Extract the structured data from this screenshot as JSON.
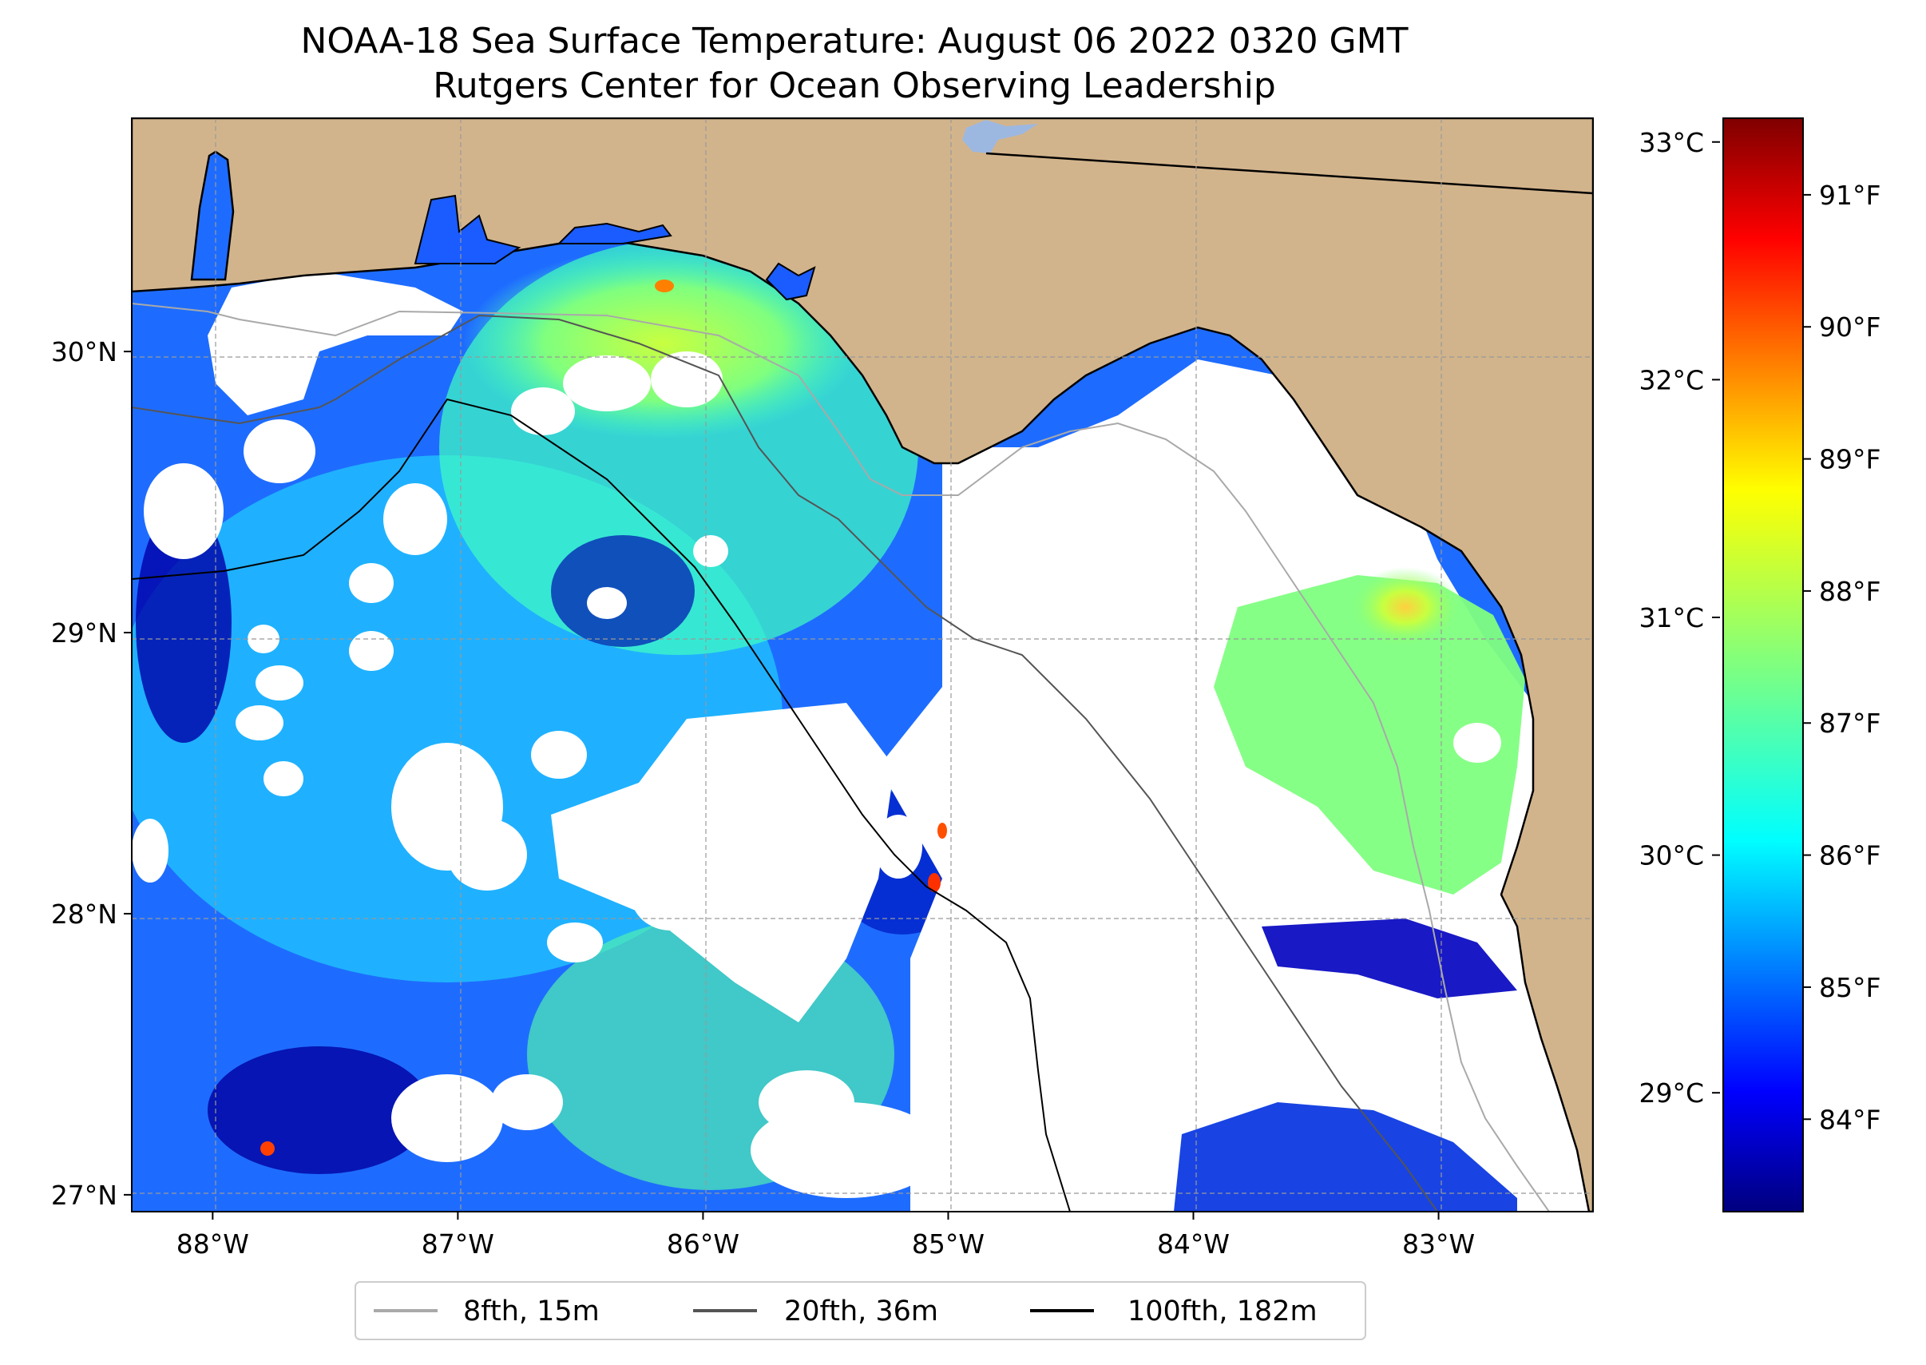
{
  "title": {
    "line1": "NOAA-18 Sea Surface Temperature: August 06 2022 0320 GMT",
    "line2": "Rutgers Center for Ocean Observing Leadership"
  },
  "map": {
    "lon_range": [
      -88.33,
      -82.37
    ],
    "lat_range": [
      26.94,
      30.83
    ],
    "lon_ticks": [
      {
        "value": -88,
        "label": "88°W"
      },
      {
        "value": -87,
        "label": "87°W"
      },
      {
        "value": -86,
        "label": "86°W"
      },
      {
        "value": -85,
        "label": "85°W"
      },
      {
        "value": -84,
        "label": "84°W"
      },
      {
        "value": -83,
        "label": "83°W"
      }
    ],
    "lat_ticks": [
      {
        "value": 30,
        "label": "30°N"
      },
      {
        "value": 29,
        "label": "29°N"
      },
      {
        "value": 28,
        "label": "28°N"
      },
      {
        "value": 27,
        "label": "27°N"
      }
    ],
    "grid": true,
    "gridline_style": "dashed",
    "colors": {
      "land": "#d2b48c",
      "no_data": "#ffffff",
      "lake": "#9db8e0",
      "isobath_8fth": "#a9a9a9",
      "isobath_20fth": "#555555",
      "isobath_100fth": "#000000"
    }
  },
  "colorbar": {
    "colormap": "jet",
    "colors": [
      "#00007f",
      "#0000ff",
      "#007fff",
      "#00ffff",
      "#7fff7f",
      "#ffff00",
      "#ff7f00",
      "#ff0000",
      "#7f0000"
    ],
    "celsius_range": [
      28.5,
      33.1
    ],
    "celsius_ticks": [
      {
        "value": 29,
        "label": "29°C"
      },
      {
        "value": 30,
        "label": "30°C"
      },
      {
        "value": 31,
        "label": "31°C"
      },
      {
        "value": 32,
        "label": "32°C"
      },
      {
        "value": 33,
        "label": "33°C"
      }
    ],
    "fahrenheit_ticks": [
      {
        "value": 84,
        "label": "84°F"
      },
      {
        "value": 85,
        "label": "85°F"
      },
      {
        "value": 86,
        "label": "86°F"
      },
      {
        "value": 87,
        "label": "87°F"
      },
      {
        "value": 88,
        "label": "88°F"
      },
      {
        "value": 89,
        "label": "89°F"
      },
      {
        "value": 90,
        "label": "90°F"
      },
      {
        "value": 91,
        "label": "91°F"
      }
    ]
  },
  "legend": {
    "placement": "bottom-center",
    "items": [
      {
        "label": "8fth, 15m",
        "color": "#a9a9a9"
      },
      {
        "label": "20fth, 36m",
        "color": "#555555"
      },
      {
        "label": "100fth, 182m",
        "color": "#000000"
      }
    ]
  }
}
